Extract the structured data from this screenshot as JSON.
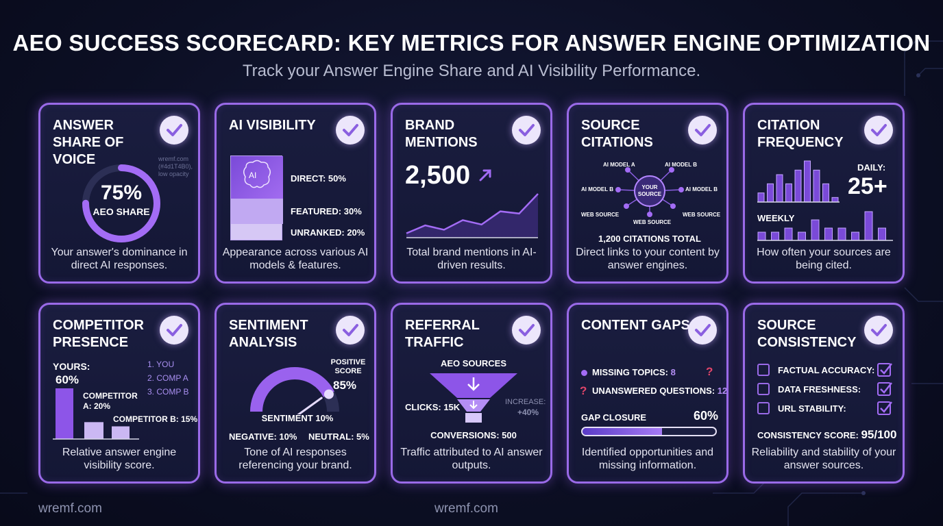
{
  "header": {
    "title": "AEO SUCCESS SCORECARD: KEY METRICS FOR ANSWER ENGINE OPTIMIZATION",
    "subtitle": "Track your Answer Engine Share and AI Visibility Performance."
  },
  "colors": {
    "accent": "#9a6ae8",
    "background": "#0c0f24",
    "check": "#8a5fe0"
  },
  "cards": {
    "share": {
      "title": "ANSWER SHARE OF VOICE",
      "value": "75%",
      "value_label": "AEO SHARE",
      "progress": 0.75,
      "watermark": "wremf.com (#4d1T4B0), low opacity",
      "desc": "Your answer's dominance in direct AI responses."
    },
    "visibility": {
      "title": "AI VISIBILITY",
      "icon_text": "AI",
      "direct": "DIRECT: 50%",
      "featured": "FEATURED: 30%",
      "unranked": "UNRANKED: 20%",
      "shares": [
        50,
        30,
        20
      ],
      "desc": "Appearance across various AI models & features."
    },
    "mentions": {
      "title": "BRAND MENTIONS",
      "value": "2,500",
      "trend": [
        10,
        28,
        18,
        40,
        30,
        60,
        55,
        100
      ],
      "desc": "Total brand mentions in AI-driven results."
    },
    "citations": {
      "title": "SOURCE CITATIONS",
      "center": "YOUR SOURCE",
      "nodes": [
        "AI MODEL A",
        "AI MODEL B",
        "AI MODEL B",
        "AI MODEL B",
        "WEB SOURCE",
        "WEB SOURCE",
        "WEB SOURCE"
      ],
      "total": "1,200 CITATIONS TOTAL",
      "desc": "Direct links to your content by answer engines."
    },
    "frequency": {
      "title": "CITATION FREQUENCY",
      "daily_label": "DAILY:",
      "daily_value": "25+",
      "weekly_label": "WEEKLY",
      "daily_bars": [
        2,
        4,
        6,
        4,
        7,
        9,
        7,
        4,
        1
      ],
      "weekly_bars": [
        2,
        2,
        3,
        2,
        5,
        3,
        3,
        2,
        7,
        3
      ],
      "desc": "How often your sources are being cited."
    },
    "competitor": {
      "title": "COMPETITOR PRESENCE",
      "yours_label": "YOURS:",
      "yours_value": "60%",
      "comp_a": "COMPETITOR A: 20%",
      "comp_b": "COMPETITOR B: 15%",
      "values": [
        60,
        20,
        15
      ],
      "ranks": [
        "1. YOU",
        "2. COMP A",
        "3. COMP B"
      ],
      "desc": "Relative answer engine visibility score."
    },
    "sentiment": {
      "title": "SENTIMENT ANALYSIS",
      "positive_label": "POSITIVE SCORE",
      "positive_value": "85%",
      "sentiment": "SENTIMENT 10%",
      "negative": "NEGATIVE: 10%",
      "neutral": "NEUTRAL: 5%",
      "gauge": 0.85,
      "desc": "Tone of AI responses referencing your brand."
    },
    "referral": {
      "title": "REFERRAL TRAFFIC",
      "sources": "AEO SOURCES",
      "clicks": "CLICKS: 15K",
      "increase_label": "INCREASE:",
      "increase_value": "+40%",
      "conversions": "CONVERSIONS: 500",
      "desc": "Traffic attributed to AI answer outputs."
    },
    "gaps": {
      "title": "CONTENT GAPS",
      "missing_label": "MISSING TOPICS:",
      "missing_value": "8",
      "unanswered_label": "UNANSWERED QUESTIONS:",
      "unanswered_value": "12",
      "closure_label": "GAP CLOSURE",
      "closure_value": "60%",
      "closure": 0.6,
      "desc": "Identified opportunities and missing information."
    },
    "consistency": {
      "title": "SOURCE CONSISTENCY",
      "items": [
        "FACTUAL ACCURACY:",
        "DATA FRESHNESS:",
        "URL STABILITY:"
      ],
      "score_label": "CONSISTENCY SCORE:",
      "score_value": "95/100",
      "desc": "Reliability and stability of your answer sources."
    }
  },
  "footer": {
    "left": "wremf.com",
    "center": "wremf.com"
  }
}
